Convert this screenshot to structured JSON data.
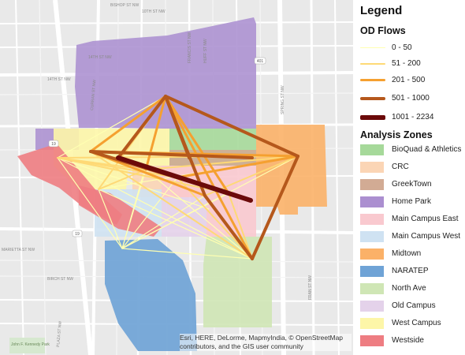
{
  "legend": {
    "title": "Legend",
    "od_header": "OD Flows",
    "flows": [
      {
        "label": "0 - 50",
        "color": "#ffffb2",
        "w": 1
      },
      {
        "label": "51 - 200",
        "color": "#fed976",
        "w": 2
      },
      {
        "label": "201 - 500",
        "color": "#f5a030",
        "w": 3
      },
      {
        "label": "501 - 1000",
        "color": "#b5581c",
        "w": 4
      },
      {
        "label": "1001 - 2234",
        "color": "#6b0a0a",
        "w": 6
      }
    ],
    "zones_header": "Analysis Zones",
    "zones": [
      {
        "label": "BioQuad & Athletics",
        "color": "#a6d99a"
      },
      {
        "label": "CRC",
        "color": "#fbd5b5"
      },
      {
        "label": "GreekTown",
        "color": "#d2ab94"
      },
      {
        "label": "Home Park",
        "color": "#ab8fd0"
      },
      {
        "label": "Main Campus East",
        "color": "#f9c9cf"
      },
      {
        "label": "Main Campus West",
        "color": "#cfe2f2"
      },
      {
        "label": "Midtown",
        "color": "#fbb168"
      },
      {
        "label": "NARATEP",
        "color": "#6fa3d6"
      },
      {
        "label": "North Ave",
        "color": "#cfe6b5"
      },
      {
        "label": "Old Campus",
        "color": "#e4d2ea"
      },
      {
        "label": "West Campus",
        "color": "#fdf6a8"
      },
      {
        "label": "Westside",
        "color": "#ee7d82"
      }
    ]
  },
  "map": {
    "attribution": "Esri, HERE, DeLorme, MapmyIndia, © OpenStreetMap contributors, and the GIS user community",
    "streets": [
      "14TH ST NW",
      "14TH ST NW",
      "CURRAN ST NW",
      "FRANCIS ST NW",
      "HUFF ST NW",
      "SPRING ST NW",
      "BISHOP ST NW",
      "10TH ST NW",
      "MARIETTA ST NW",
      "BIRCH ST NW",
      "PLAZA ST NW",
      "FRAN ST NW"
    ],
    "shields": [
      "401",
      "19",
      "19"
    ],
    "park_label": "John F. Kennedy Park"
  }
}
